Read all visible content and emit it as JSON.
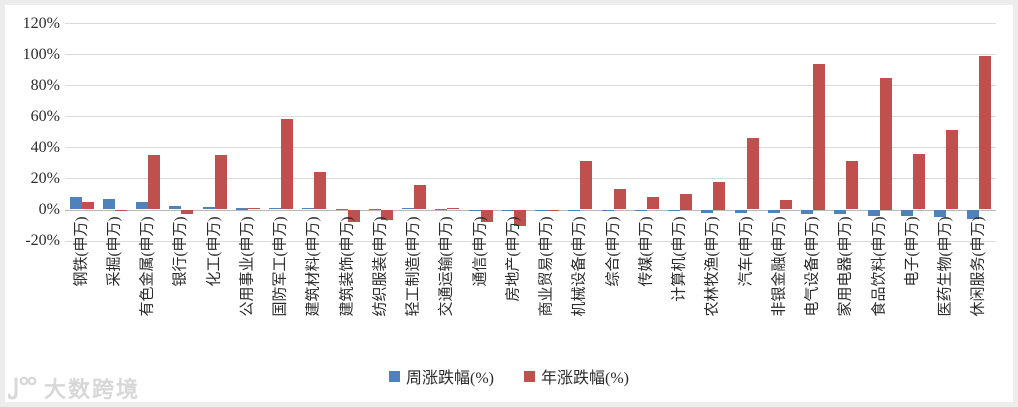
{
  "chart_data": {
    "type": "bar",
    "title": "",
    "xlabel": "",
    "ylabel": "",
    "categories": [
      "钢铁(申万)",
      "采掘(申万)",
      "有色金属(申万)",
      "银行(申万)",
      "化工(申万)",
      "公用事业(申万)",
      "国防军工(申万)",
      "建筑材料(申万)",
      "建筑装饰(申万)",
      "纺织服装(申万)",
      "轻工制造(申万)",
      "交通运输(申万)",
      "通信(申万)",
      "房地产(申万)",
      "商业贸易(申万)",
      "机械设备(申万)",
      "综合(申万)",
      "传媒(申万)",
      "计算机(申万)",
      "农林牧渔(申万)",
      "汽车(申万)",
      "非银金融(申万)",
      "电气设备(申万)",
      "家用电器(申万)",
      "食品饮料(申万)",
      "电子(申万)",
      "医药生物(申万)",
      "休闲服务(申万)"
    ],
    "series": [
      {
        "name": "周涨跌幅(%)",
        "color": "#4F81BD",
        "values": [
          8,
          7,
          5,
          2.5,
          1.5,
          1.3,
          1,
          0.8,
          0.5,
          0.5,
          0.7,
          0.5,
          -0.3,
          -0.4,
          -0.5,
          -0.5,
          -0.5,
          -0.5,
          -1,
          -2.5,
          -2,
          -2,
          -3,
          -3,
          -4,
          -4,
          -4.5,
          -6
        ]
      },
      {
        "name": "年涨跌幅(%)",
        "color": "#C0504D",
        "values": [
          5,
          -1,
          35,
          -3,
          35,
          1,
          58,
          24,
          -8,
          -7,
          15.5,
          1,
          -8,
          -10.5,
          -0.3,
          31,
          13,
          8,
          10,
          18,
          46,
          6,
          94,
          31,
          85,
          36,
          51,
          99
        ]
      }
    ],
    "ylim": [
      -20,
      120
    ],
    "ytick_step": 20,
    "yticks": [
      "120%",
      "100%",
      "80%",
      "60%",
      "40%",
      "20%",
      "0%",
      "-20%"
    ],
    "grid": "horizontal-only",
    "legend_position": "bottom-center"
  },
  "legend": {
    "week_label": "周涨跌幅(%)",
    "year_label": "年涨跌幅(%)"
  },
  "watermark": {
    "text": "大数跨境"
  },
  "colors": {
    "week_series": "#4F81BD",
    "year_series": "#C0504D",
    "gridline": "#dadada",
    "axis_line": "#b9b9b9",
    "label_text": "#2b2b2b",
    "watermark": "#d8d8d8",
    "frame": "#ededed"
  }
}
